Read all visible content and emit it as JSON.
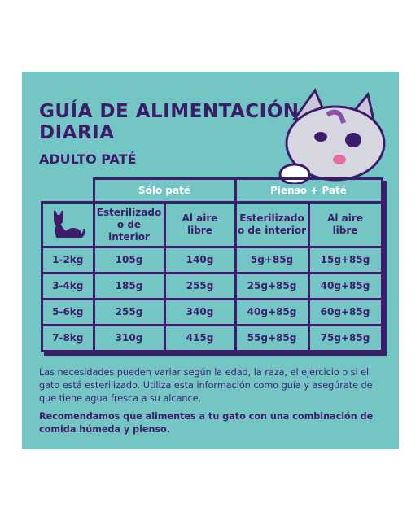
{
  "header": {
    "title_lines": [
      "GUÍA DE ALIMENTACIÓN",
      "DIARIA"
    ],
    "subtitle": "ADULTO PATÉ"
  },
  "table": {
    "groups": [
      "Sólo paté",
      "Pienso + Paté"
    ],
    "columns": [
      "Esterilizado\no de interior",
      "Al aire\nlibre",
      "Esterilizado\no de interior",
      "Al aire\nlibre"
    ],
    "rows": [
      [
        "1-2kg",
        "105g",
        "140g",
        "5g+85g",
        "15g+85g"
      ],
      [
        "3-4kg",
        "185g",
        "255g",
        "25g+85g",
        "40g+85g"
      ],
      [
        "5-6kg",
        "255g",
        "340g",
        "40g+85g",
        "60g+85g"
      ],
      [
        "7-8kg",
        "310g",
        "415g",
        "55g+85g",
        "75g+85g"
      ]
    ]
  },
  "notes": [
    "Las necesidades pueden variar según la edad, la raza, el ejercicio o si el gato está esterilizado. Utiliza esta información como guía y asegúrate de que tiene agua fresca a su alcance.",
    "Recomendamos que alimentes a tu gato con una combinación de comida húmeda y pienso."
  ]
}
